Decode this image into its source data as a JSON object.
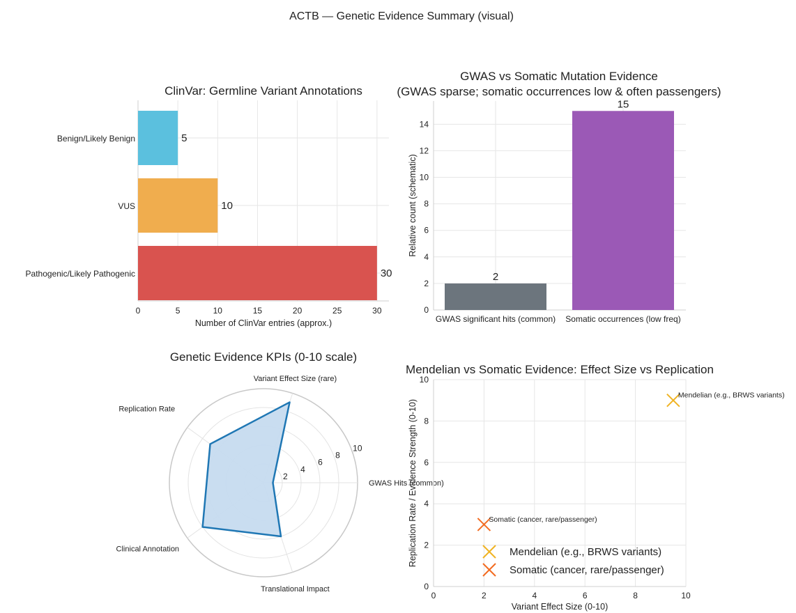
{
  "suptitle": "ACTB — Genetic Evidence Summary (visual)",
  "colors": {
    "benign": "#5bc0de",
    "vus": "#f0ad4e",
    "pathogenic": "#d9534f",
    "gwas": "#6c757d",
    "somatic_bar": "#9b59b6",
    "radar": "#1f77b4",
    "radar_fill": "#c6dbef",
    "mendelian": "#f0b323",
    "somatic_marker": "#f26b21"
  },
  "chart_data": [
    {
      "type": "bar",
      "orientation": "horizontal",
      "title": "ClinVar: Germline Variant Annotations",
      "xlabel": "Number of ClinVar entries (approx.)",
      "ylabel": "",
      "categories": [
        "Benign/Likely Benign",
        "VUS",
        "Pathogenic/Likely Pathogenic"
      ],
      "values": [
        5,
        10,
        30
      ],
      "xlim": [
        0,
        31.5
      ],
      "xticks": [
        "0",
        "5",
        "10",
        "15",
        "20",
        "25",
        "30"
      ],
      "grid": true
    },
    {
      "type": "bar",
      "title": "GWAS vs Somatic Mutation Evidence",
      "subtitle": "(GWAS sparse; somatic occurrences low & often passengers)",
      "xlabel": "",
      "ylabel": "Relative count (schematic)",
      "categories": [
        "GWAS significant hits (common)",
        "Somatic occurrences (low freq)"
      ],
      "values": [
        2,
        15
      ],
      "ylim": [
        0,
        15.75
      ],
      "yticks": [
        "0",
        "2",
        "4",
        "6",
        "8",
        "10",
        "12",
        "14"
      ],
      "grid": true
    },
    {
      "type": "radar",
      "title": "Genetic Evidence KPIs (0-10 scale)",
      "axes": [
        "GWAS Hits (common)",
        "Variant Effect Size (rare)",
        "Replication Rate",
        "Clinical Annotation",
        "Translational Impact"
      ],
      "values": [
        1,
        9,
        7,
        8,
        6
      ],
      "rmax": 10,
      "rticks": [
        "2",
        "4",
        "6",
        "8",
        "10"
      ]
    },
    {
      "type": "scatter",
      "title": "Mendelian vs Somatic Evidence: Effect Size vs Replication",
      "xlabel": "Variant Effect Size (0-10)",
      "ylabel": "Replication Rate / Evidence Strength (0-10)",
      "xlim": [
        0,
        10
      ],
      "ylim": [
        0,
        10
      ],
      "xticks": [
        "0",
        "2",
        "4",
        "6",
        "8",
        "10"
      ],
      "yticks": [
        "0",
        "2",
        "4",
        "6",
        "8",
        "10"
      ],
      "series": [
        {
          "name": "Mendelian (e.g., BRWS variants)",
          "x": 9.5,
          "y": 9,
          "label": "Mendelian (e.g., BRWS variants)"
        },
        {
          "name": "Somatic (cancer, rare/passenger)",
          "x": 2,
          "y": 3,
          "label": "Somatic (cancer, rare/passenger)"
        }
      ],
      "legend": "lower-center",
      "grid": true
    }
  ]
}
